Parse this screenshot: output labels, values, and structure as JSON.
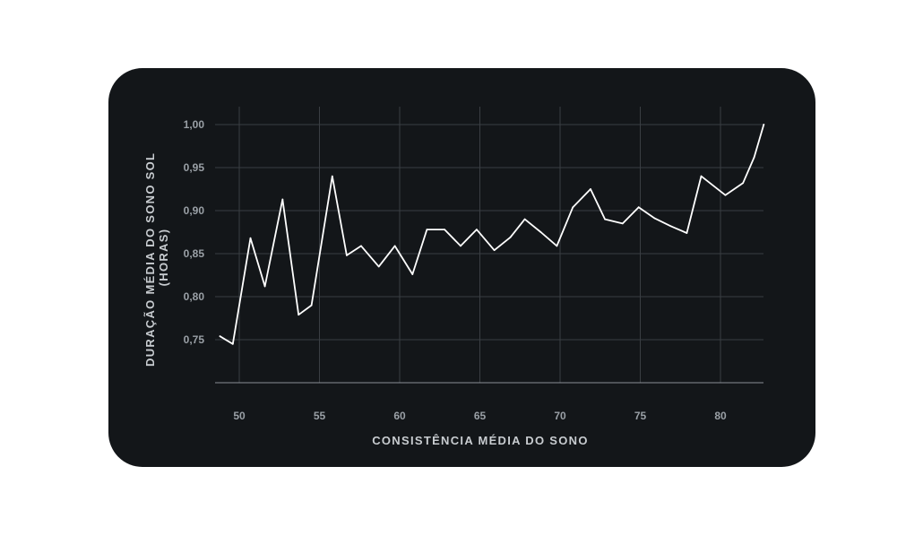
{
  "chart_data": {
    "type": "line",
    "title": "",
    "xlabel": "CONSISTÊNCIA MÉDIA DO SONO",
    "ylabel_lines": [
      "DURAÇÃO MÉDIA DO SONO SOL",
      "(HORAS)"
    ],
    "xlim": [
      48.5,
      83
    ],
    "ylim": [
      0.7,
      1.0
    ],
    "x_ticks": [
      50,
      55,
      60,
      65,
      70,
      75,
      80
    ],
    "x_tick_labels": [
      "50",
      "55",
      "60",
      "65",
      "70",
      "75",
      "80"
    ],
    "y_ticks": [
      0.75,
      0.8,
      0.85,
      0.9,
      0.95,
      1.0
    ],
    "y_tick_labels": [
      "0,75",
      "0,80",
      "0,85",
      "0,90",
      "0,95",
      "1,00"
    ],
    "grid": true,
    "legend": "none",
    "colors": {
      "background": "#131619",
      "line": "#ffffff",
      "grid": "#3a3e43",
      "tick_text": "#9aa0a6",
      "axis_title": "#c8ccd0"
    },
    "series": [
      {
        "x": [
          48.8,
          49.6,
          50.7,
          51.6,
          52.7,
          53.7,
          54.5,
          55.8,
          56.7,
          57.6,
          58.7,
          59.7,
          60.8,
          61.7,
          62.8,
          63.8,
          64.8,
          65.9,
          66.9,
          67.8,
          68.8,
          69.8,
          70.8,
          71.9,
          72.8,
          73.9,
          74.9,
          75.9,
          76.9,
          77.9,
          78.8,
          80.3,
          81.4,
          82.1,
          82.7
        ],
        "y": [
          0.754,
          0.745,
          0.868,
          0.812,
          0.913,
          0.779,
          0.79,
          0.94,
          0.848,
          0.859,
          0.835,
          0.859,
          0.826,
          0.878,
          0.878,
          0.859,
          0.878,
          0.854,
          0.869,
          0.89,
          0.875,
          0.859,
          0.904,
          0.925,
          0.89,
          0.885,
          0.904,
          0.891,
          0.882,
          0.874,
          0.94,
          0.918,
          0.932,
          0.962,
          1.0
        ]
      }
    ]
  }
}
